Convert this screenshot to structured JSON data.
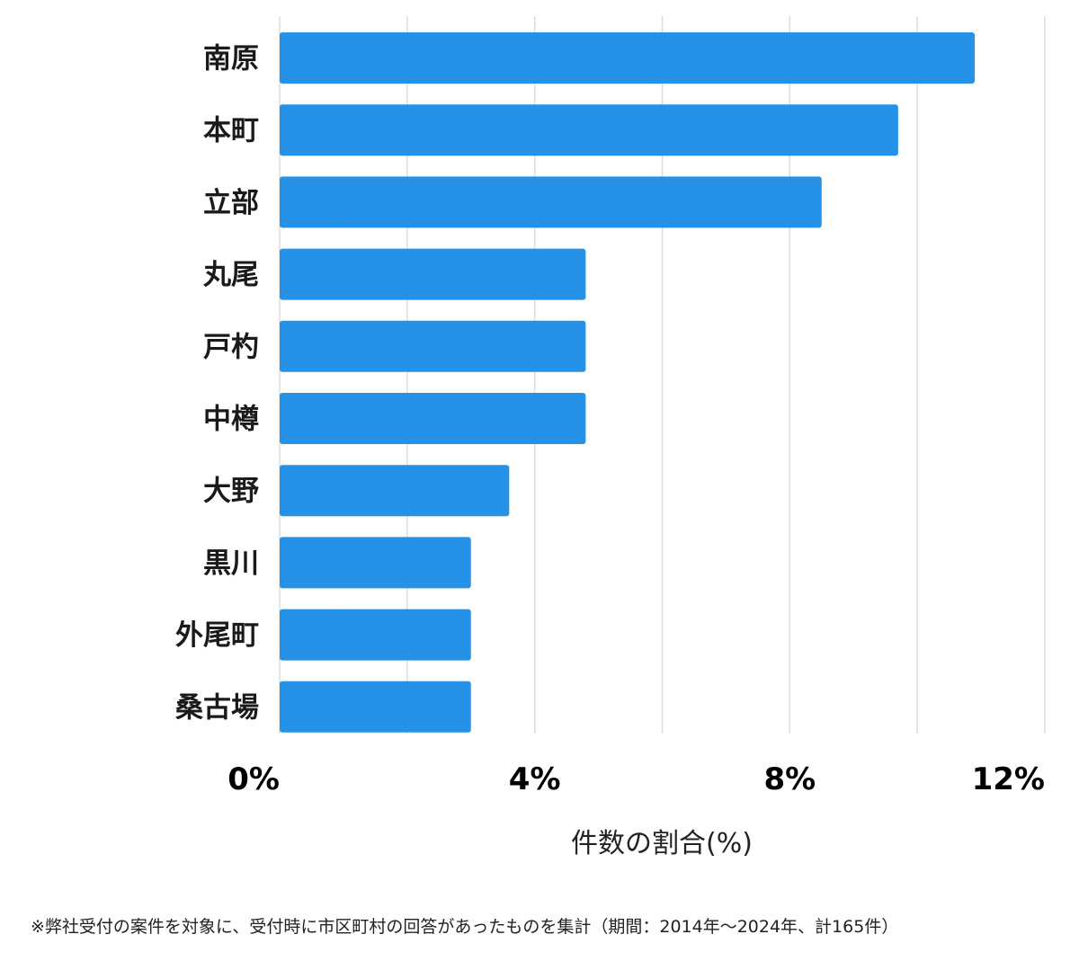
{
  "chart_data": {
    "type": "bar",
    "orientation": "horizontal",
    "categories": [
      "南原",
      "本町",
      "立部",
      "丸尾",
      "戸杓",
      "中樽",
      "大野",
      "黒川",
      "外尾町",
      "桑古場"
    ],
    "values": [
      10.9,
      9.7,
      8.5,
      4.8,
      4.8,
      4.8,
      3.6,
      3.0,
      3.0,
      3.0
    ],
    "xlim": [
      0,
      12
    ],
    "xticks": [
      0,
      4,
      8,
      12
    ],
    "tick_labels": [
      "0%",
      "4%",
      "8%",
      "12%"
    ],
    "gridlines": [
      0,
      2,
      4,
      6,
      8,
      10,
      12
    ],
    "xlabel": "件数の割合(%)",
    "ylabel": "",
    "title": "",
    "bar_color": "#2592e8",
    "grid_color": "#dddddd"
  },
  "footnote": "※弊社受付の案件を対象に、受付時に市区町村の回答があったものを集計（期間：2014年～2024年、計165件）"
}
